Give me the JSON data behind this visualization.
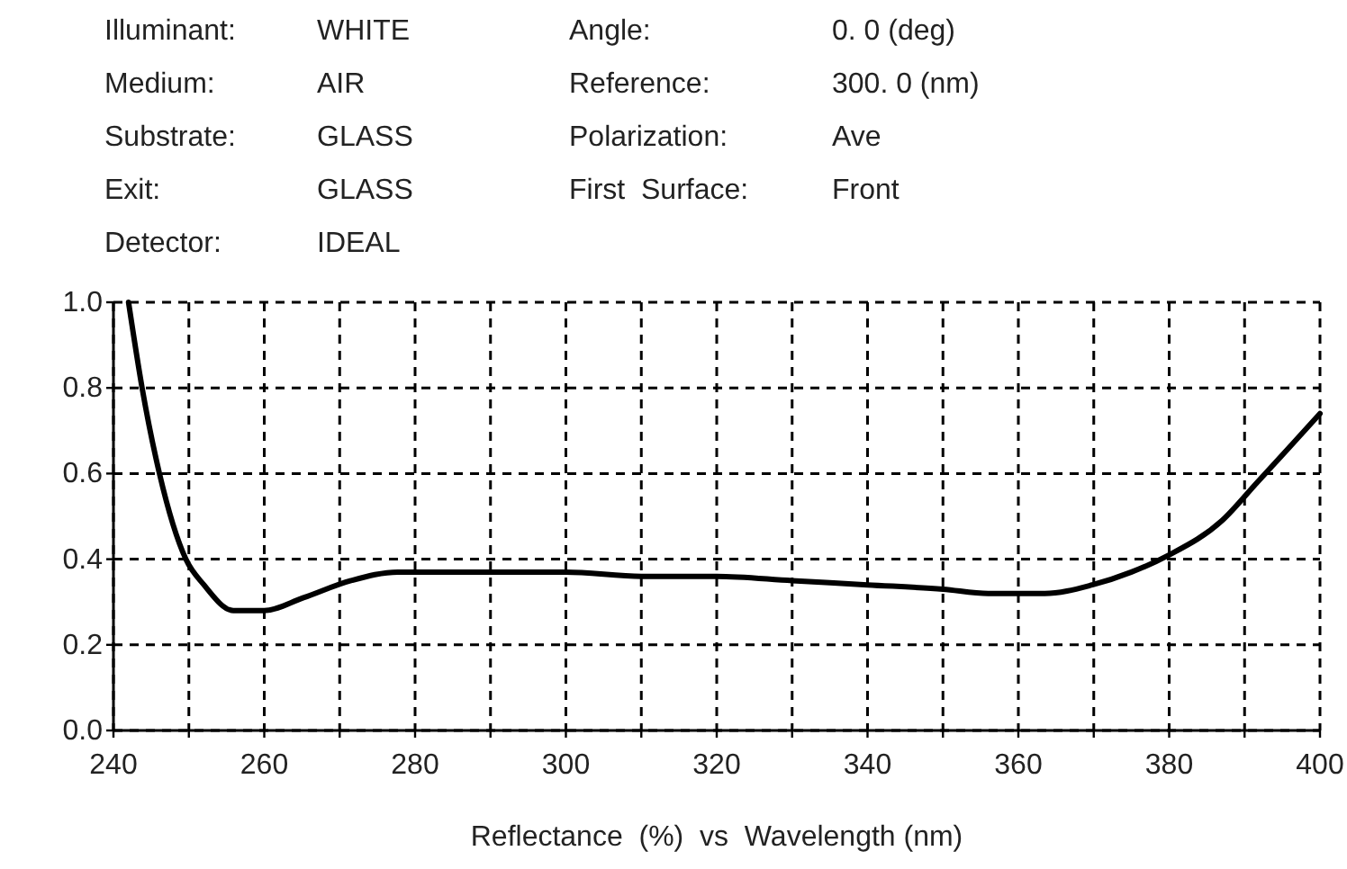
{
  "chart_data": {
    "type": "line",
    "xlabel": "Reflectance  (%)  vs  Wavelength (nm)",
    "annotations": [
      "Illuminant: WHITE",
      "Angle: 0. 0 (deg)",
      "Medium: AIR",
      "Reference: 300. 0 (nm)",
      "Substrate: GLASS",
      "Polarization: Ave",
      "Exit: GLASS",
      "First  Surface: Front",
      "Detector: IDEAL"
    ],
    "series": [
      {
        "color": "#000000",
        "x": [
          242,
          243.8,
          246.1,
          249.6,
          252,
          255.9,
          260,
          265.2,
          271.5,
          277.7,
          280,
          290,
          300,
          310,
          320,
          330,
          340,
          350,
          356,
          363.5,
          369.8,
          375,
          380,
          387,
          391.7,
          396.4,
          400
        ],
        "values": [
          1.0,
          0.8,
          0.6,
          0.4,
          0.34,
          0.28,
          0.28,
          0.31,
          0.35,
          0.37,
          0.37,
          0.37,
          0.37,
          0.36,
          0.36,
          0.35,
          0.34,
          0.33,
          0.32,
          0.32,
          0.34,
          0.37,
          0.41,
          0.49,
          0.58,
          0.67,
          0.74
        ]
      }
    ],
    "xlim": [
      240,
      400
    ],
    "ylim": [
      0,
      1
    ],
    "xticks": [
      240,
      {
        "value": 250,
        "label": null
      },
      260,
      {
        "value": 270,
        "label": null
      },
      280,
      {
        "value": 290,
        "label": null
      },
      300,
      {
        "value": 310,
        "label": null
      },
      320,
      {
        "value": 330,
        "label": null
      },
      340,
      {
        "value": 350,
        "label": null
      },
      360,
      {
        "value": 370,
        "label": null
      },
      380,
      {
        "value": 390,
        "label": null
      },
      400
    ],
    "yticks": [
      {
        "value": 0,
        "label": "0.0"
      },
      0.2,
      0.4,
      0.6,
      0.8,
      {
        "value": 1,
        "label": "1.0"
      }
    ],
    "grid": true,
    "line_style": "solid",
    "marker": "none"
  }
}
